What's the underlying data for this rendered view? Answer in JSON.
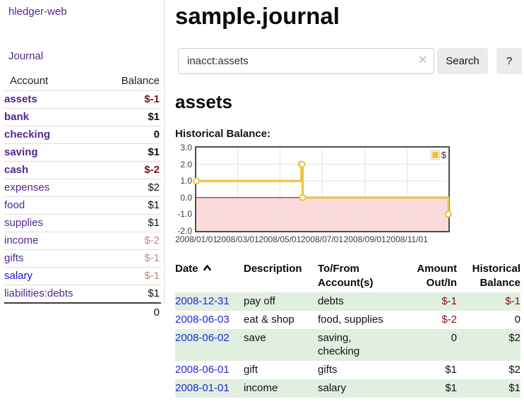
{
  "app": {
    "brand": "hledger-web"
  },
  "sidebar": {
    "journal_label": "Journal",
    "table": {
      "account_header": "Account",
      "balance_header": "Balance",
      "accounts": [
        {
          "name": "assets",
          "balance": "$-1"
        },
        {
          "name": "bank",
          "balance": "$1"
        },
        {
          "name": "checking",
          "balance": "0"
        },
        {
          "name": "saving",
          "balance": "$1"
        },
        {
          "name": "cash",
          "balance": "$-2"
        },
        {
          "name": "expenses",
          "balance": "$2"
        },
        {
          "name": "food",
          "balance": "$1"
        },
        {
          "name": "supplies",
          "balance": "$1"
        },
        {
          "name": "income",
          "balance": "$-2"
        },
        {
          "name": "gifts",
          "balance": "$-1"
        },
        {
          "name": "salary",
          "balance": "$-1"
        },
        {
          "name": "liabilities:debts",
          "balance": "$1"
        }
      ],
      "total": "0"
    }
  },
  "header": {
    "title": "sample.journal"
  },
  "search": {
    "query": "inacct:assets",
    "clear_icon": "✕",
    "search_label": "Search",
    "help_label": "?"
  },
  "register": {
    "heading": "assets",
    "chart_label": "Historical Balance:",
    "table": {
      "headers": {
        "date": "Date",
        "description": "Description",
        "account": "To/From Account(s)",
        "amount": "Amount Out/In",
        "balance": "Historical Balance"
      },
      "rows": [
        {
          "date": "2008-12-31",
          "description": "pay off",
          "accounts": "debts",
          "amount": "$-1",
          "balance": "$-1"
        },
        {
          "date": "2008-06-03",
          "description": "eat & shop",
          "accounts": "food, supplies",
          "amount": "$-2",
          "balance": "0"
        },
        {
          "date": "2008-06-02",
          "description": "save",
          "accounts": "saving, checking",
          "amount": "0",
          "balance": "$2"
        },
        {
          "date": "2008-06-01",
          "description": "gift",
          "accounts": "gifts",
          "amount": "$1",
          "balance": "$2"
        },
        {
          "date": "2008-01-01",
          "description": "income",
          "accounts": "salary",
          "amount": "$1",
          "balance": "$1"
        }
      ]
    }
  },
  "chart_data": {
    "type": "line",
    "style": "step",
    "title": "Historical Balance",
    "series": [
      {
        "name": "$",
        "color": "#EDC240",
        "points": [
          [
            "2008-01-01",
            1.0
          ],
          [
            "2008-06-01",
            2.0
          ],
          [
            "2008-06-02",
            2.0
          ],
          [
            "2008-06-03",
            0.0
          ],
          [
            "2008-12-31",
            -1.0
          ]
        ]
      }
    ],
    "x_range": [
      "2008-01-01",
      "2008-12-31"
    ],
    "x_tick_labels": [
      "2008/01/01",
      "2008/03/01",
      "2008/05/01",
      "2008/07/01",
      "2008/09/01",
      "2008/11/01"
    ],
    "y_ticks": [
      "3.0",
      "2.0",
      "1.0",
      "0.0",
      "-1.0",
      "-2.0"
    ],
    "ylim": [
      -2,
      3
    ],
    "legend": {
      "position": "top-right",
      "label": "$"
    },
    "grid": true,
    "gridline_color": "#e3e3e3",
    "zero_line_color": "#8b1a1a",
    "negative_region_color": "#fadada"
  },
  "colors": {
    "link_purple": "#52278f",
    "link_blue": "#1216d6",
    "date_link_blue": "#2126de",
    "negative_dark": "#7d1417",
    "negative_light": "#c98585",
    "row_green": "#e0efe0",
    "series_yellow": "#EDC240",
    "chart_negative_pink": "#fadada",
    "chart_zero_line": "#8b1a1a",
    "button_gray": "#ebebeb"
  }
}
